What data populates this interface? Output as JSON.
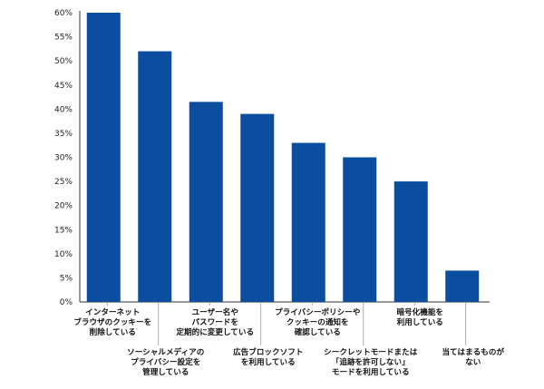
{
  "chart_data": {
    "type": "bar",
    "categories": [
      "インターネット\nブラウザのクッキーを\n削除している",
      "ソーシャルメディアの\nプライバシー設定を\n管理している",
      "ユーザー名や\nパスワードを\n定期的に変更している",
      "広告ブロックソフト\nを利用している",
      "プライバシーポリシーや\nクッキーの通知を\n確認している",
      "シークレットモードまたは\n「追跡を許可しない」\nモードを利用している",
      "暗号化機能を\n利用している",
      "当てはまるものが\nない"
    ],
    "values": [
      60,
      52,
      41.5,
      39,
      33,
      30,
      25,
      6.5
    ],
    "ylim": [
      0,
      60
    ],
    "yticks": [
      "0%",
      "5%",
      "10%",
      "15%",
      "20%",
      "25%",
      "30%",
      "35%",
      "40%",
      "45%",
      "50%",
      "55%",
      "60%"
    ],
    "bar_color": "#0b4d9e",
    "grid": false,
    "legend": "none"
  }
}
